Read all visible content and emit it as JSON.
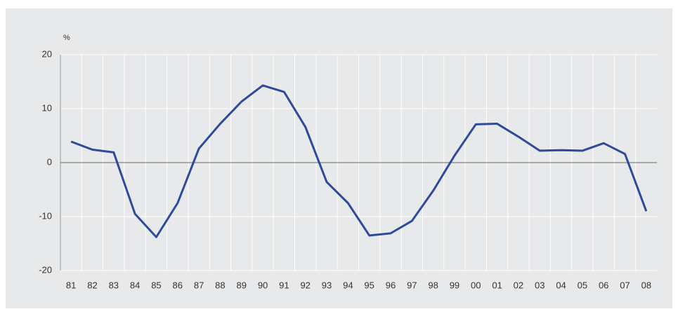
{
  "chart_data": {
    "type": "line",
    "y_label": "%",
    "categories": [
      "81",
      "82",
      "83",
      "84",
      "85",
      "86",
      "87",
      "88",
      "89",
      "90",
      "91",
      "92",
      "93",
      "94",
      "95",
      "96",
      "97",
      "98",
      "99",
      "00",
      "01",
      "02",
      "03",
      "04",
      "05",
      "06",
      "07",
      "08"
    ],
    "series": [
      {
        "color": "#2e4b9b",
        "values": [
          3.9,
          2.4,
          1.9,
          -9.5,
          -13.8,
          -7.5,
          2.6,
          7.2,
          11.3,
          14.3,
          13.1,
          6.6,
          -3.6,
          -7.5,
          -13.5,
          -13.1,
          -10.8,
          -5.2,
          1.3,
          7.1,
          7.2,
          4.8,
          2.2,
          2.3,
          2.2,
          3.6,
          1.6,
          -9.0
        ]
      }
    ],
    "ylim": [
      -20,
      20
    ],
    "yticks": [
      -20,
      -10,
      0,
      10,
      20
    ],
    "grid": true
  }
}
